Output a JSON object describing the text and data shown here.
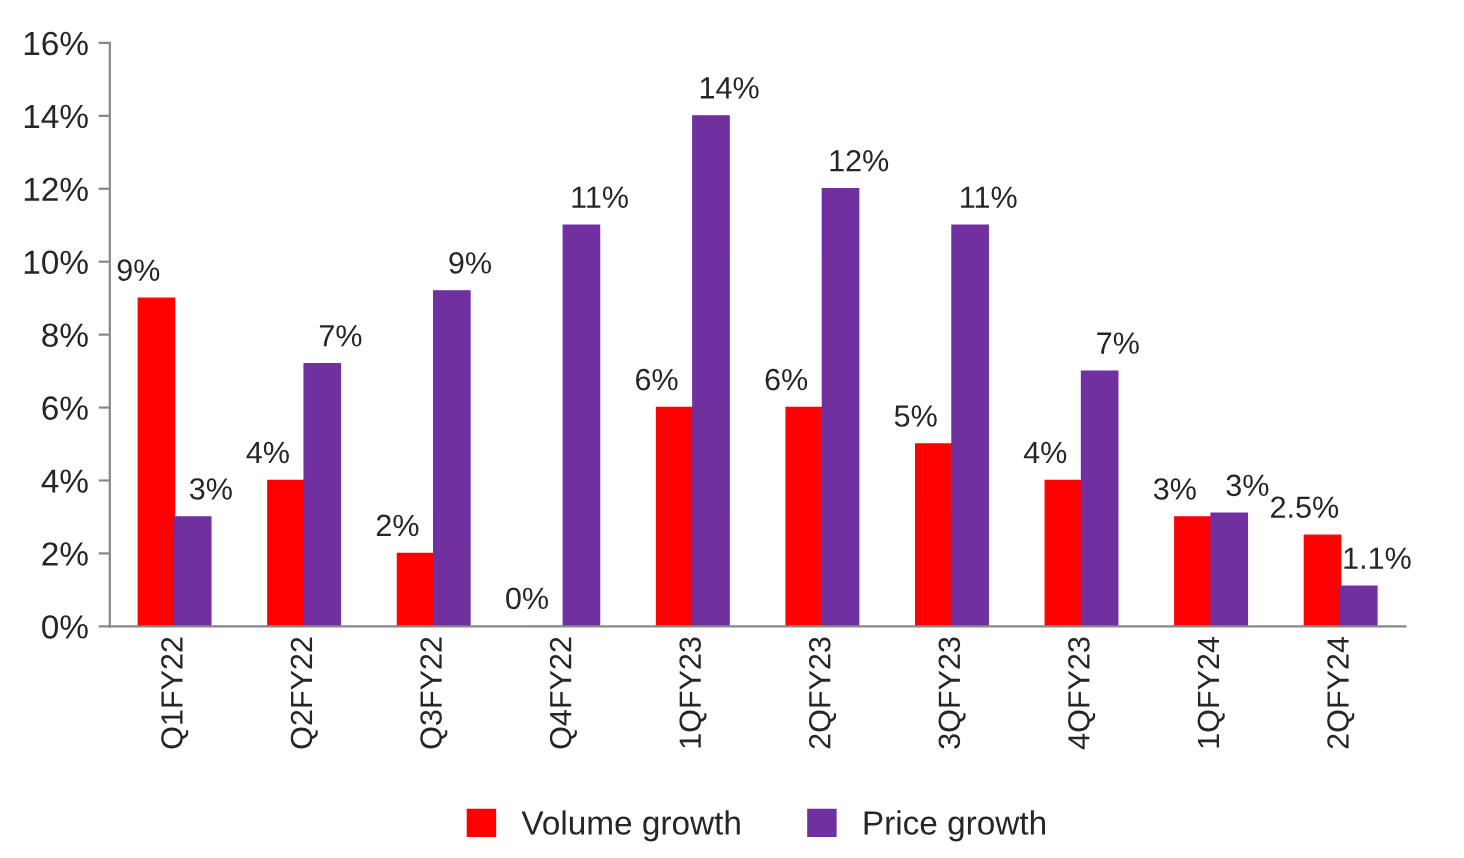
{
  "chart_data": {
    "type": "bar",
    "categories": [
      "Q1FY22",
      "Q2FY22",
      "Q3FY22",
      "Q4FY22",
      "1QFY23",
      "2QFY23",
      "3QFY23",
      "4QFY23",
      "1QFY24",
      "2QFY24"
    ],
    "series": [
      {
        "name": "Volume growth",
        "color": "#ff0000",
        "values": [
          9,
          4,
          2,
          0,
          6,
          6,
          5,
          4,
          3,
          2.5
        ],
        "value_labels": [
          "9%",
          "4%",
          "2%",
          "0%",
          "6%",
          "6%",
          "5%",
          "4%",
          "3%",
          "2.5%"
        ]
      },
      {
        "name": "Price growth",
        "color": "#7030a0",
        "values": [
          3,
          7.2,
          9.2,
          11,
          14,
          12,
          11,
          7,
          3.1,
          1.1
        ],
        "value_labels": [
          "3%",
          "7%",
          "9%",
          "11%",
          "14%",
          "12%",
          "11%",
          "7%",
          "3%",
          "1.1%"
        ]
      }
    ],
    "ylim": [
      0,
      16
    ],
    "yticks": [
      {
        "value": 0,
        "label": "0%"
      },
      {
        "value": 2,
        "label": "2%"
      },
      {
        "value": 4,
        "label": "4%"
      },
      {
        "value": 6,
        "label": "6%"
      },
      {
        "value": 8,
        "label": "8%"
      },
      {
        "value": 10,
        "label": "10%"
      },
      {
        "value": 12,
        "label": "12%"
      },
      {
        "value": 14,
        "label": "14%"
      },
      {
        "value": 16,
        "label": "16%"
      }
    ],
    "legend": "bottom",
    "grid": false
  }
}
